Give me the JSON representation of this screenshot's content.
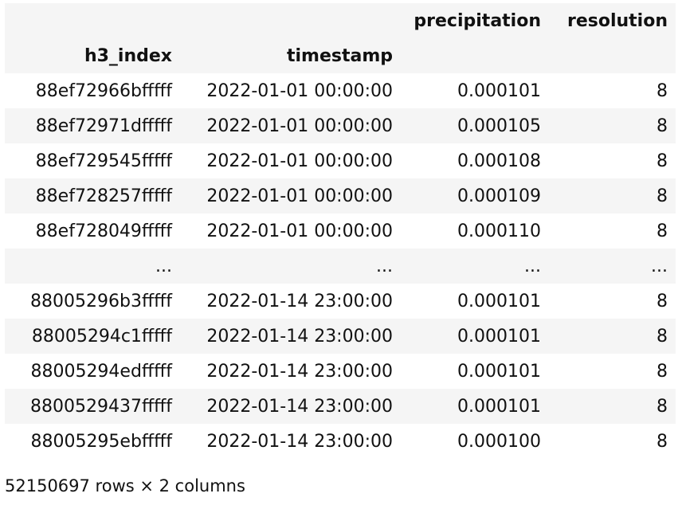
{
  "columns": {
    "precipitation": "precipitation",
    "resolution": "resolution"
  },
  "index_names": {
    "h3_index": "h3_index",
    "timestamp": "timestamp"
  },
  "rows": [
    {
      "h3_index": "88ef72966bfffff",
      "timestamp": "2022-01-01 00:00:00",
      "precipitation": "0.000101",
      "resolution": "8"
    },
    {
      "h3_index": "88ef72971dfffff",
      "timestamp": "2022-01-01 00:00:00",
      "precipitation": "0.000105",
      "resolution": "8"
    },
    {
      "h3_index": "88ef729545fffff",
      "timestamp": "2022-01-01 00:00:00",
      "precipitation": "0.000108",
      "resolution": "8"
    },
    {
      "h3_index": "88ef728257fffff",
      "timestamp": "2022-01-01 00:00:00",
      "precipitation": "0.000109",
      "resolution": "8"
    },
    {
      "h3_index": "88ef728049fffff",
      "timestamp": "2022-01-01 00:00:00",
      "precipitation": "0.000110",
      "resolution": "8"
    },
    {
      "h3_index": "...",
      "timestamp": "...",
      "precipitation": "...",
      "resolution": "..."
    },
    {
      "h3_index": "88005296b3fffff",
      "timestamp": "2022-01-14 23:00:00",
      "precipitation": "0.000101",
      "resolution": "8"
    },
    {
      "h3_index": "88005294c1fffff",
      "timestamp": "2022-01-14 23:00:00",
      "precipitation": "0.000101",
      "resolution": "8"
    },
    {
      "h3_index": "88005294edfffff",
      "timestamp": "2022-01-14 23:00:00",
      "precipitation": "0.000101",
      "resolution": "8"
    },
    {
      "h3_index": "8800529437fffff",
      "timestamp": "2022-01-14 23:00:00",
      "precipitation": "0.000101",
      "resolution": "8"
    },
    {
      "h3_index": "88005295ebfffff",
      "timestamp": "2022-01-14 23:00:00",
      "precipitation": "0.000100",
      "resolution": "8"
    }
  ],
  "footer": "52150697 rows × 2 columns"
}
